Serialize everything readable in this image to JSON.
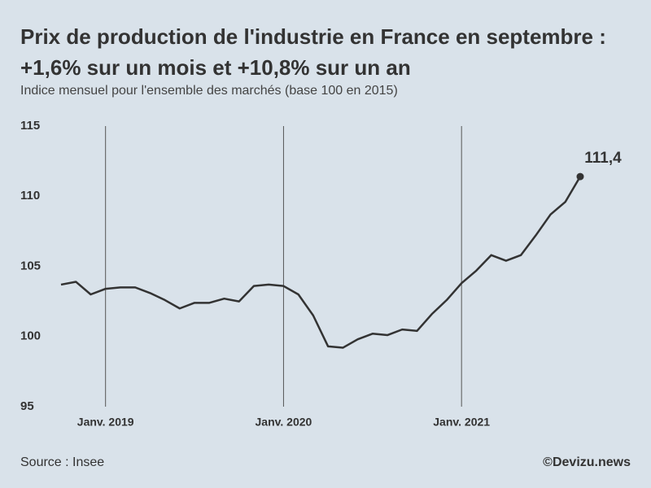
{
  "chart_data": {
    "type": "line",
    "title": "Prix de production de l'industrie en France en septembre : +1,6% sur un mois et +10,8% sur un an",
    "subtitle": "Indice mensuel pour l'ensemble des marchés (base 100 en 2015)",
    "categories": [
      null,
      null,
      null,
      "Janv. 2019",
      null,
      null,
      null,
      null,
      null,
      null,
      null,
      null,
      null,
      null,
      null,
      "Janv. 2020",
      null,
      null,
      null,
      null,
      null,
      null,
      null,
      null,
      null,
      null,
      null,
      "Janv. 2021",
      null,
      null,
      null,
      null,
      null,
      null,
      null,
      null
    ],
    "series": [
      {
        "name": "Indice",
        "color": "#333333",
        "values": [
          103.7,
          103.9,
          103.0,
          103.4,
          103.5,
          103.5,
          103.1,
          102.6,
          102.0,
          102.4,
          102.4,
          102.7,
          102.5,
          103.6,
          103.7,
          103.6,
          103.0,
          101.5,
          99.3,
          99.2,
          99.8,
          100.2,
          100.1,
          100.5,
          100.4,
          101.6,
          102.6,
          103.8,
          104.7,
          105.8,
          105.4,
          105.8,
          107.2,
          108.7,
          109.6,
          111.4
        ],
        "value_labels": [
          null,
          null,
          null,
          null,
          null,
          null,
          null,
          null,
          null,
          null,
          null,
          null,
          null,
          null,
          null,
          null,
          null,
          null,
          null,
          null,
          null,
          null,
          null,
          null,
          null,
          null,
          null,
          null,
          null,
          null,
          null,
          null,
          null,
          null,
          null,
          "111,4"
        ]
      }
    ],
    "ylim": [
      95,
      115
    ],
    "yticks": [
      95,
      100,
      105,
      110,
      115
    ],
    "source": "Source : Insee",
    "credit": "©Devizu.news"
  }
}
